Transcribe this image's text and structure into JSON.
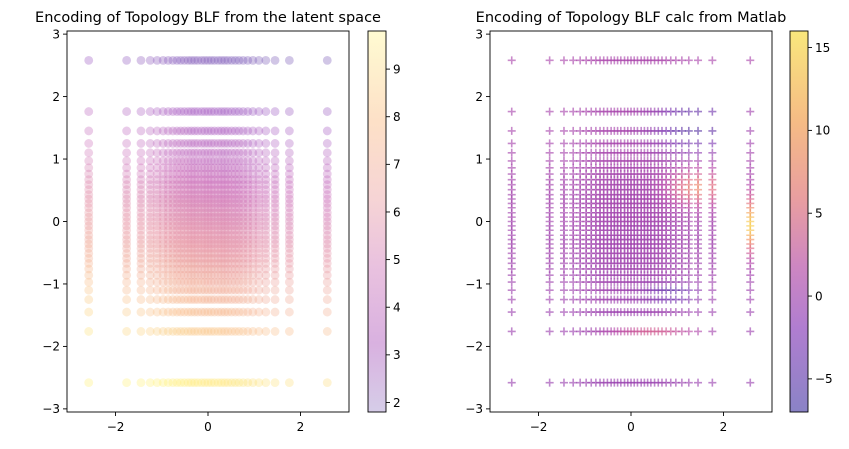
{
  "chart_data": [
    {
      "type": "scatter",
      "title": "Encoding of Topology BLF from the latent space",
      "xlabel": "",
      "ylabel": "",
      "marker": "circle",
      "alpha": 0.35,
      "xlim": [
        -3.05,
        3.05
      ],
      "ylim": [
        -3.05,
        3.05
      ],
      "xticks": [
        -2,
        0,
        2
      ],
      "xtick_labels": [
        "−2",
        "0",
        "2"
      ],
      "yticks": [
        -3,
        -2,
        -1,
        0,
        1,
        2,
        3
      ],
      "ytick_labels": [
        "−3",
        "−2",
        "−1",
        "0",
        "1",
        "2",
        "3"
      ],
      "grid": false,
      "colormap": "magma-like (purple → pink → peach → pale yellow)",
      "colorbar": {
        "range": [
          1.8,
          9.8
        ],
        "ticks": [
          2,
          3,
          4,
          5,
          6,
          7,
          8,
          9
        ],
        "tick_labels": [
          "2",
          "3",
          "4",
          "5",
          "6",
          "7",
          "8",
          "9"
        ]
      },
      "grid_coordinates": [
        -2.58,
        -1.76,
        -1.45,
        -1.25,
        -1.1,
        -0.97,
        -0.86,
        -0.76,
        -0.67,
        -0.59,
        -0.51,
        -0.43,
        -0.36,
        -0.29,
        -0.22,
        -0.14,
        -0.07,
        0.0,
        0.07,
        0.14,
        0.22,
        0.29,
        0.36,
        0.43,
        0.51,
        0.59,
        0.67,
        0.76,
        0.86,
        0.97,
        1.1,
        1.25,
        1.45,
        1.76,
        2.58
      ],
      "value_description": "value rises from about 2 at the top (y = 2.58) to about 9.5 at the bottom (y = -2.58)"
    },
    {
      "type": "scatter",
      "title": "Encoding of Topology BLF calc from Matlab",
      "xlabel": "",
      "ylabel": "",
      "marker": "plus",
      "alpha": 0.6,
      "xlim": [
        -3.05,
        3.05
      ],
      "ylim": [
        -3.05,
        3.05
      ],
      "xticks": [
        -2,
        0,
        2
      ],
      "xtick_labels": [
        "−2",
        "0",
        "2"
      ],
      "yticks": [
        -3,
        -2,
        -1,
        0,
        1,
        2,
        3
      ],
      "ytick_labels": [
        "−3",
        "−2",
        "−1",
        "0",
        "1",
        "2",
        "3"
      ],
      "grid": false,
      "colormap": "plasma-like (slate blue → purple → pink → yellow)",
      "colorbar": {
        "range": [
          -7,
          16
        ],
        "ticks": [
          -5,
          0,
          5,
          10,
          15
        ],
        "tick_labels": [
          "−5",
          "0",
          "5",
          "10",
          "15"
        ]
      },
      "grid_coordinates": [
        -2.58,
        -1.76,
        -1.45,
        -1.25,
        -1.1,
        -0.97,
        -0.86,
        -0.76,
        -0.67,
        -0.59,
        -0.51,
        -0.43,
        -0.36,
        -0.29,
        -0.22,
        -0.14,
        -0.07,
        0.0,
        0.07,
        0.14,
        0.22,
        0.29,
        0.36,
        0.43,
        0.51,
        0.59,
        0.67,
        0.76,
        0.86,
        0.97,
        1.1,
        1.25,
        1.45,
        1.76,
        2.58
      ],
      "value_description": "mostly near 0 to 3; a peach region near x = 1 to 1.8, y = 0.4 to 0.7; a maximum of about 15 at x = 2.58, y = 0; negative values (about -5) at the far right of the top rows"
    }
  ]
}
